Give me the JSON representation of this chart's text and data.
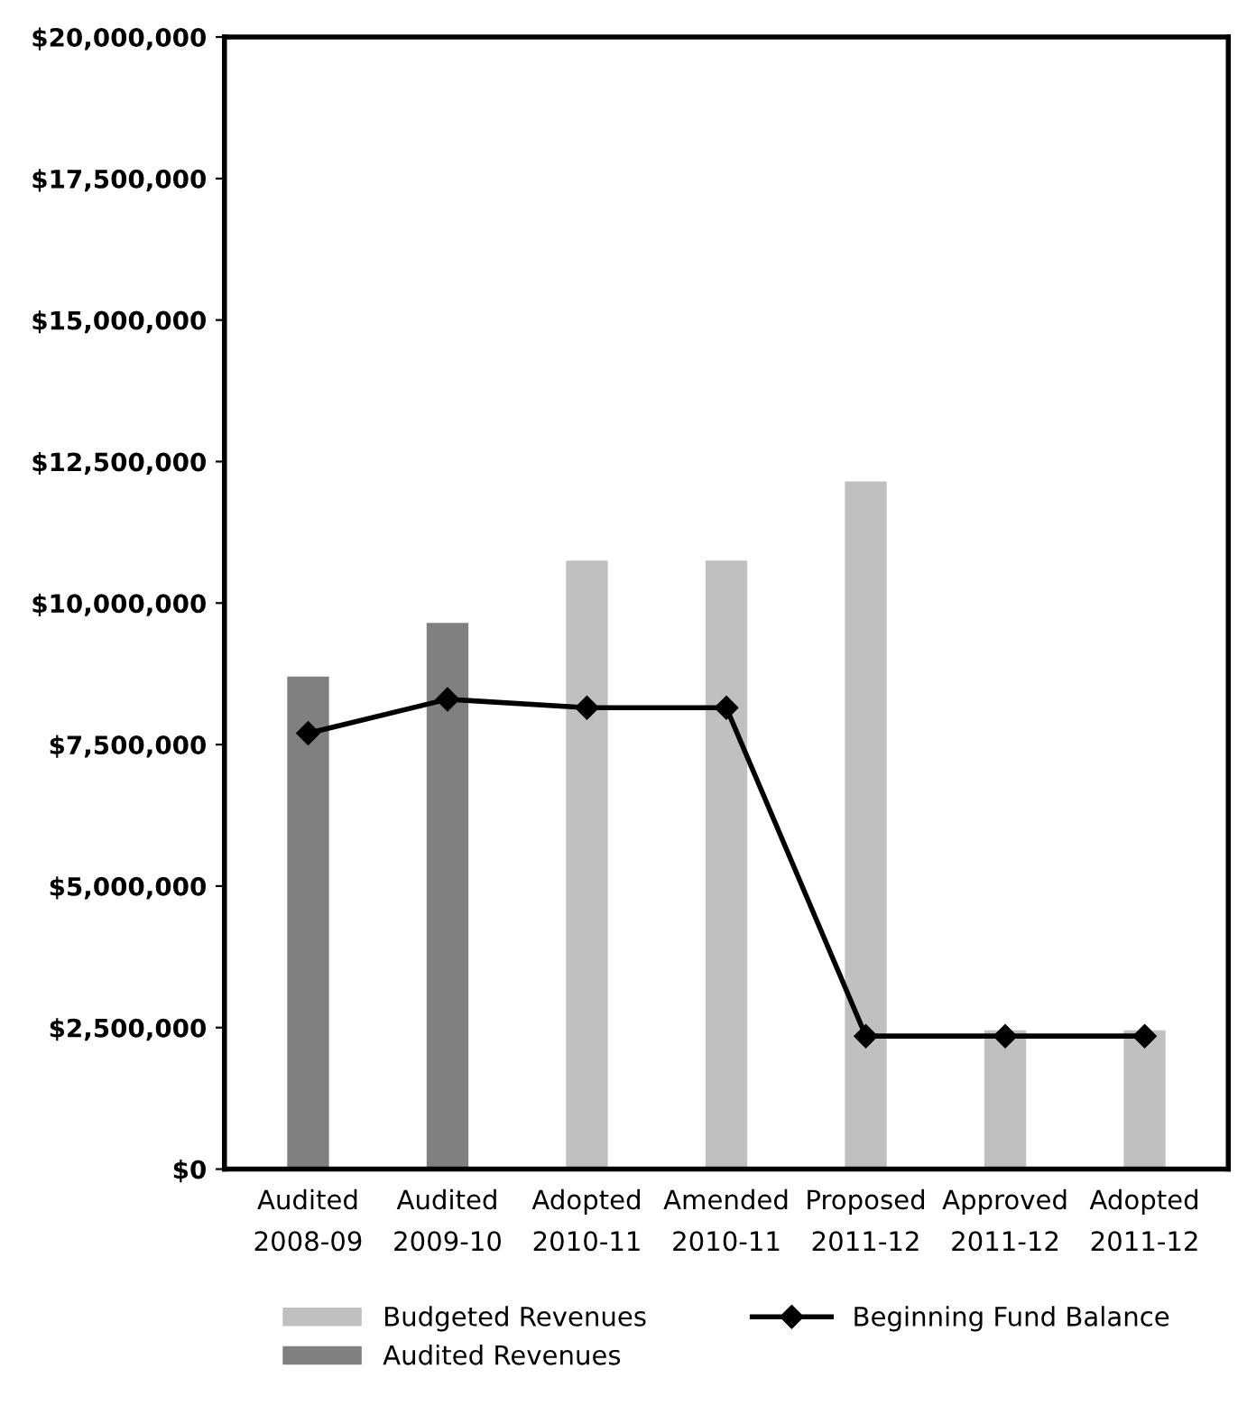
{
  "chart_data": {
    "type": "bar",
    "categories": [
      "Audited\n2008-09",
      "Audited\n2009-10",
      "Adopted\n2010-11",
      "Amended\n2010-11",
      "Proposed\n2011-12",
      "Approved\n2011-12",
      "Adopted\n2011-12"
    ],
    "series": [
      {
        "name": "Budgeted Revenues",
        "color": "#c0c0c0",
        "values": [
          null,
          null,
          10750000,
          10750000,
          12150000,
          2450000,
          2450000
        ]
      },
      {
        "name": "Audited Revenues",
        "color": "#808080",
        "values": [
          8700000,
          9650000,
          null,
          null,
          null,
          null,
          null
        ]
      },
      {
        "name": "Beginning Fund Balance",
        "type": "line",
        "color": "#000000",
        "marker": "diamond",
        "values": [
          7700000,
          8300000,
          8150000,
          8150000,
          2350000,
          2350000,
          2350000
        ]
      }
    ],
    "ylim": [
      0,
      20000000
    ],
    "yticks": [
      {
        "value": 0,
        "label": "$0"
      },
      {
        "value": 2500000,
        "label": "$2,500,000"
      },
      {
        "value": 5000000,
        "label": "$5,000,000"
      },
      {
        "value": 7500000,
        "label": "$7,500,000"
      },
      {
        "value": 10000000,
        "label": "$10,000,000"
      },
      {
        "value": 12500000,
        "label": "$12,500,000"
      },
      {
        "value": 15000000,
        "label": "$15,000,000"
      },
      {
        "value": 17500000,
        "label": "$17,500,000"
      },
      {
        "value": 20000000,
        "label": "$20,000,000"
      }
    ],
    "grid": false,
    "legend": "bottom"
  }
}
